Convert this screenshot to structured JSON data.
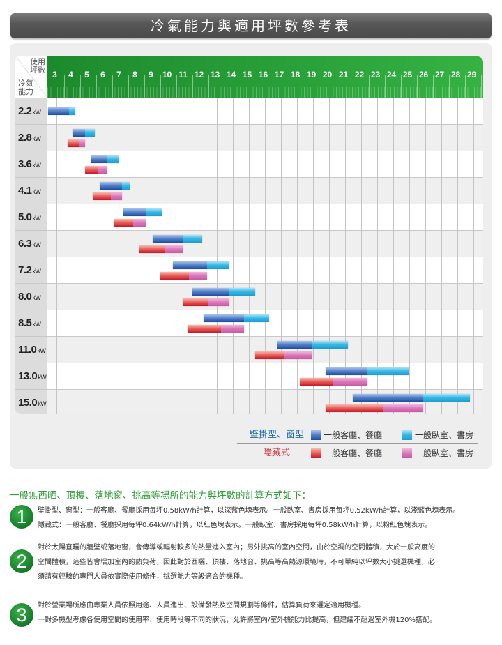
{
  "title": "冷氣能力與適用坪數參考表",
  "chart_data": {
    "type": "bar",
    "subtype": "floating-range (gantt)",
    "title": "冷氣能力與適用坪數參考表",
    "xlabel": "使用坪數",
    "ylabel": "冷氣能力",
    "x_ticks": [
      3,
      4,
      5,
      6,
      7,
      8,
      9,
      10,
      11,
      12,
      13,
      14,
      15,
      16,
      17,
      18,
      19,
      20,
      21,
      22,
      23,
      24,
      25,
      26,
      27,
      28,
      29
    ],
    "xlim": [
      2.5,
      29.8
    ],
    "grid": true,
    "categories": [
      "2.2kW",
      "2.8kW",
      "3.6kW",
      "4.1kW",
      "5.0kW",
      "6.3kW",
      "7.2kW",
      "8.0kW",
      "8.5kW",
      "11.0kW",
      "13.0kW",
      "15.0kW"
    ],
    "series": [
      {
        "name": "壁掛型、窗型 一般客廳、餐廳",
        "color": "#2f62b4",
        "ranges": [
          [
            2.5,
            3.8
          ],
          [
            4.0,
            4.8
          ],
          [
            5.2,
            6.2
          ],
          [
            5.7,
            7.1
          ],
          [
            7.2,
            8.6
          ],
          [
            9.0,
            10.9
          ],
          [
            10.3,
            12.4
          ],
          [
            11.5,
            13.8
          ],
          [
            12.2,
            14.7
          ],
          [
            16.8,
            19.0
          ],
          [
            19.8,
            22.4
          ],
          [
            21.5,
            25.9
          ]
        ]
      },
      {
        "name": "壁掛型、窗型 一般臥室、書房",
        "color": "#27ade0",
        "ranges": [
          [
            3.8,
            4.2
          ],
          [
            4.8,
            5.4
          ],
          [
            6.2,
            6.9
          ],
          [
            7.1,
            7.6
          ],
          [
            8.6,
            9.6
          ],
          [
            10.9,
            12.1
          ],
          [
            12.4,
            13.8
          ],
          [
            13.8,
            15.4
          ],
          [
            14.7,
            16.3
          ],
          [
            19.0,
            21.2
          ],
          [
            22.4,
            25.0
          ],
          [
            25.9,
            28.8
          ]
        ]
      },
      {
        "name": "隱藏式 一般客廳、餐廳",
        "color": "#d9343a",
        "ranges": [
          null,
          [
            3.7,
            4.4
          ],
          [
            4.8,
            5.6
          ],
          [
            5.3,
            6.4
          ],
          [
            6.6,
            7.8
          ],
          [
            8.2,
            9.8
          ],
          [
            9.5,
            11.3
          ],
          [
            10.9,
            12.5
          ],
          [
            11.2,
            13.3
          ],
          [
            15.4,
            17.2
          ],
          [
            18.2,
            20.3
          ],
          [
            19.8,
            23.4
          ]
        ]
      },
      {
        "name": "隱藏式 一般臥室、書房",
        "color": "#d772b5",
        "ranges": [
          null,
          [
            4.4,
            4.8
          ],
          [
            5.6,
            6.2
          ],
          [
            6.4,
            7.1
          ],
          [
            7.8,
            8.6
          ],
          [
            9.8,
            10.9
          ],
          [
            11.3,
            12.4
          ],
          [
            12.5,
            13.8
          ],
          [
            13.3,
            14.7
          ],
          [
            17.2,
            19.0
          ],
          [
            20.3,
            22.4
          ],
          [
            23.4,
            25.9
          ]
        ]
      }
    ],
    "legend_position": "bottom-right"
  },
  "chart": {
    "corner_top": "使用\n坪數",
    "corner_bottom": "冷氣\n能力",
    "rows": [
      {
        "value": "2.2",
        "unit": "kW"
      },
      {
        "value": "2.8",
        "unit": "kW"
      },
      {
        "value": "3.6",
        "unit": "kW"
      },
      {
        "value": "4.1",
        "unit": "kW"
      },
      {
        "value": "5.0",
        "unit": "kW"
      },
      {
        "value": "6.3",
        "unit": "kW"
      },
      {
        "value": "7.2",
        "unit": "kW"
      },
      {
        "value": "8.0",
        "unit": "kW"
      },
      {
        "value": "8.5",
        "unit": "kW"
      },
      {
        "value": "11.0",
        "unit": "kW"
      },
      {
        "value": "13.0",
        "unit": "kW"
      },
      {
        "value": "15.0",
        "unit": "kW"
      }
    ]
  },
  "legend": {
    "type1": "壁掛型、窗型",
    "type1_color": "#1f6bb0",
    "type2": "隱藏式",
    "type2_color": "#d32a3a",
    "living": "一般客廳、餐廳",
    "bedroom": "一般臥室、書房"
  },
  "notes": {
    "heading": "一般無西晒、頂樓、落地窗、挑高等場所的能力與坪數的計算方式如下：",
    "items": [
      {
        "num": "1",
        "lines": [
          "壁掛型、窗型：一般客廳、餐廳採用每坪0.58kW/h計算，以深藍色塊表示。一般臥室、書房採用每坪0.52kW/h計算，以淺藍色塊表示。",
          "隱藏式：一般客廳、餐廳採用每坪0.64kW/h計算，以紅色塊表示。一般臥室、書房採用每坪0.58kW/h計算，以粉紅色塊表示。"
        ]
      },
      {
        "num": "2",
        "lines": [
          "對於太陽直曬的牆壁或落地窗，會傳導或輻射較多的熱量進入室內；另外挑高的室內空間，由於空調的空間體積，大於一般高度的",
          "空間體積，這些皆會增加室內的熱負荷，因此對於西曬、頂樓、落地窗、挑高等高熱源環境時，不可單純以坪數大小挑選機種，必",
          "須請有經驗的專門人員依實際使用條件，挑選能力等級適合的機種。"
        ]
      },
      {
        "num": "3",
        "lines": [
          "對於營業場所應由專業人員依照用途、人員進出、設備發熱及空間規劃等條件，估算負荷來選定適用機種。",
          "一對多機型考慮各使用空間的使用率、使用時段等不同的狀況，允許將室內/室外機能力比提高，但建議不超過室外機120%搭配。"
        ]
      }
    ]
  }
}
